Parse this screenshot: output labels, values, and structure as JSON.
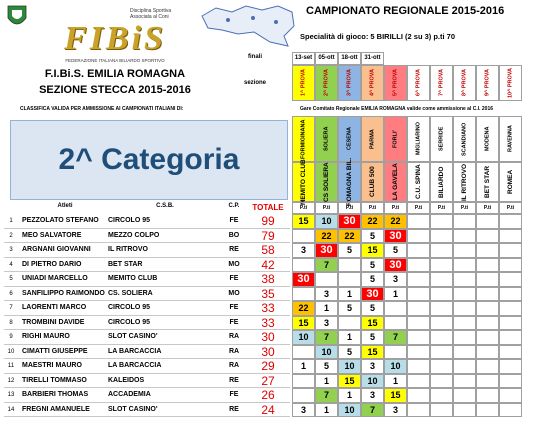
{
  "header": {
    "logo": "FIBiS",
    "logo_sub": "FEDERAZIONE ITALIANA BILIARDO SPORTIVO",
    "coni": "Disciplina Sportiva Associata al Coni",
    "federation": "F.I.Bi.S. EMILIA ROMAGNA",
    "section": "SEZIONE STECCA 2015-2016",
    "title": "CAMPIONATO REGIONALE 2015-2016",
    "specialty": "Specialità di gioco: 5 BIRILLI (2 su 3) p.ti 70"
  },
  "schedule": {
    "finali_label": "finali",
    "sezione_label": "sezione",
    "dates": [
      "13-set",
      "05-ott",
      "18-ott",
      "31-ott"
    ],
    "rounds": [
      "1^ PROVA",
      "2^ PROVA",
      "3^ PROVA",
      "4^ PROVA",
      "5^ PROVA",
      "6^ PROVA",
      "7^ PROVA",
      "8^ PROVA",
      "9^ PROVA",
      "10^ PROVA"
    ],
    "venues": [
      "FORMIGINANA",
      "SOLIERA",
      "CESENA",
      "PARMA",
      "FORLI'",
      "MIGLIARINO",
      "SERRIDE",
      "SCANDIANO",
      "MODENA",
      "RAVENNA"
    ],
    "clubs": [
      "MEMITO CLUB",
      "CS SOLIERA",
      "ROMAGNA BIL.",
      "CLUB 500",
      "LA GAVELA",
      "C.U. SPINA",
      "BILIARDO",
      "IL RITROVO",
      "BET STAR",
      "ROMEA"
    ],
    "colors": [
      "#ffff00",
      "#92d050",
      "#8db4e2",
      "#fabf8f",
      "#ff7c80",
      "#ffffff",
      "#ffffff",
      "#ffffff",
      "#ffffff",
      "#ffffff"
    ]
  },
  "notes": {
    "left": "CLASSIFICA VALIDA PER AMMISSIONE AI CAMPIONATI ITALIANI  DI:",
    "right": "Gare Comitato Regionale EMILIA ROMAGNA valide come ammissione al C.I. 2016"
  },
  "category": "2^ Categoria",
  "table": {
    "headers": [
      "Atleti",
      "C.S.B.",
      "C.P.",
      "TOTALE"
    ],
    "points_label": "P.ti",
    "rows": [
      {
        "rank": 1,
        "name": "PEZZOLATO STEFANO",
        "club": "CIRCOLO 95",
        "province": "FE",
        "total": 99,
        "scores": [
          15,
          10,
          30,
          22,
          22,
          null,
          null,
          null,
          null,
          null
        ]
      },
      {
        "rank": 2,
        "name": "MEO SALVATORE",
        "club": "MEZZO COLPO",
        "province": "BO",
        "total": 79,
        "scores": [
          null,
          22,
          22,
          5,
          30,
          null,
          null,
          null,
          null,
          null
        ]
      },
      {
        "rank": 3,
        "name": "ARGNANI GIOVANNI",
        "club": "IL RITROVO",
        "province": "RE",
        "total": 58,
        "scores": [
          3,
          30,
          5,
          15,
          5,
          null,
          null,
          null,
          null,
          null
        ]
      },
      {
        "rank": 4,
        "name": "DI PIETRO DARIO",
        "club": "BET STAR",
        "province": "MO",
        "total": 42,
        "scores": [
          null,
          7,
          null,
          5,
          30,
          null,
          null,
          null,
          null,
          null
        ]
      },
      {
        "rank": 5,
        "name": "UNIADI MARCELLO",
        "club": "MEMITO CLUB",
        "province": "FE",
        "total": 38,
        "scores": [
          30,
          null,
          null,
          5,
          3,
          null,
          null,
          null,
          null,
          null
        ]
      },
      {
        "rank": 6,
        "name": "SANFILIPPO RAIMONDO",
        "club": "CS. SOLIERA",
        "province": "MO",
        "total": 35,
        "scores": [
          null,
          3,
          1,
          30,
          1,
          null,
          null,
          null,
          null,
          null
        ]
      },
      {
        "rank": 7,
        "name": "LAORENTI MARCO",
        "club": "CIRCOLO 95",
        "province": "FE",
        "total": 33,
        "scores": [
          22,
          1,
          5,
          5,
          null,
          null,
          null,
          null,
          null,
          null
        ]
      },
      {
        "rank": 8,
        "name": "TROMBINI DAVIDE",
        "club": "CIRCOLO 95",
        "province": "FE",
        "total": 33,
        "scores": [
          15,
          3,
          null,
          15,
          null,
          null,
          null,
          null,
          null,
          null
        ]
      },
      {
        "rank": 9,
        "name": "RIGHI MAURO",
        "club": "SLOT CASINO'",
        "province": "RA",
        "total": 30,
        "scores": [
          10,
          7,
          1,
          5,
          7,
          null,
          null,
          null,
          null,
          null
        ]
      },
      {
        "rank": 10,
        "name": "CIMATTI GIUSEPPE",
        "club": "LA BARCACCIA",
        "province": "RA",
        "total": 30,
        "scores": [
          null,
          10,
          5,
          15,
          null,
          null,
          null,
          null,
          null,
          null
        ]
      },
      {
        "rank": 11,
        "name": "MAESTRI MAURO",
        "club": "LA BARCACCIA",
        "province": "RA",
        "total": 29,
        "scores": [
          1,
          5,
          10,
          3,
          10,
          null,
          null,
          null,
          null,
          null
        ]
      },
      {
        "rank": 12,
        "name": "TIRELLI TOMMASO",
        "club": "KALEIDOS",
        "province": "RE",
        "total": 27,
        "scores": [
          null,
          1,
          15,
          10,
          1,
          null,
          null,
          null,
          null,
          null
        ]
      },
      {
        "rank": 13,
        "name": "BARBIERI THOMAS",
        "club": "ACCADEMIA",
        "province": "FE",
        "total": 26,
        "scores": [
          null,
          7,
          1,
          3,
          15,
          null,
          null,
          null,
          null,
          null
        ]
      },
      {
        "rank": 14,
        "name": "FREGNI AMANUELE",
        "club": "SLOT CASINO'",
        "province": "RE",
        "total": 24,
        "scores": [
          3,
          1,
          10,
          7,
          3,
          null,
          null,
          null,
          null,
          null
        ]
      }
    ]
  }
}
